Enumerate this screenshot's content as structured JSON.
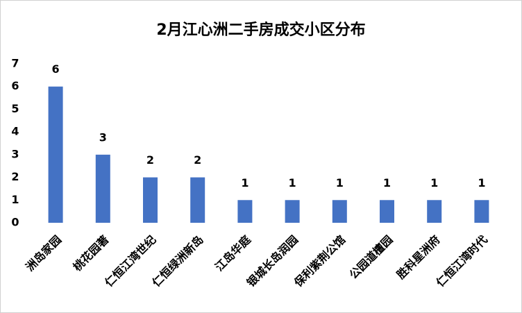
{
  "chart_data": {
    "type": "bar",
    "title": "2月江心洲二手房成交小区分布",
    "categories": [
      "洲岛家园",
      "桃花园著",
      "仁恒江湾世纪",
      "仁恒绿洲新岛",
      "江岛华庭",
      "银城长岛润园",
      "保利紫荆公馆",
      "公园道檀园",
      "胜科星洲府",
      "仁恒江湾时代"
    ],
    "values": [
      6,
      3,
      2,
      2,
      1,
      1,
      1,
      1,
      1,
      1
    ],
    "color": "#4472c4",
    "ylim": [
      0,
      7
    ],
    "yticks": [
      0,
      1,
      2,
      3,
      4,
      5,
      6,
      7
    ],
    "grid": false,
    "data_labels": true
  }
}
